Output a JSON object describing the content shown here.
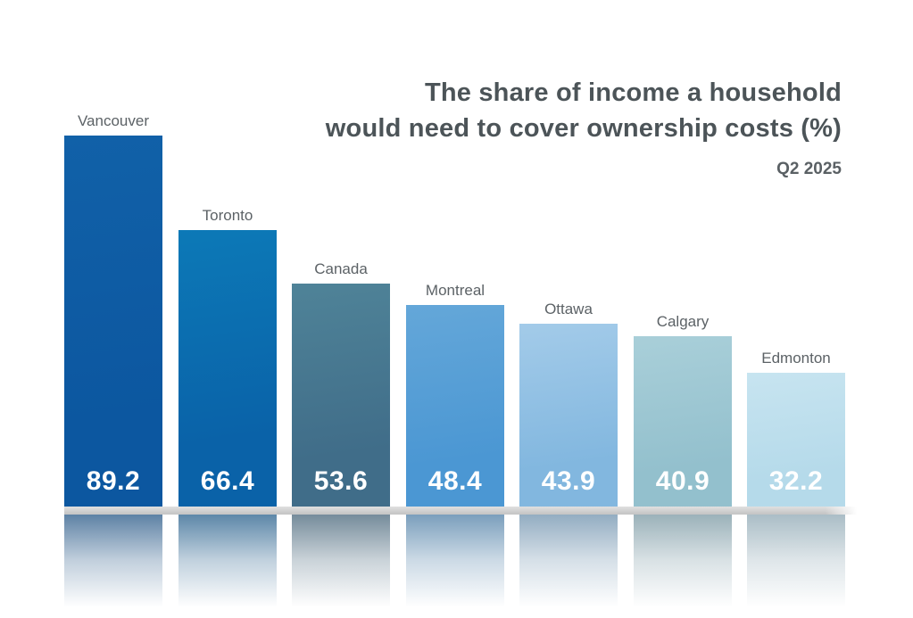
{
  "header": {
    "title_line1": "The share of income a household",
    "title_line2": "would need to cover ownership costs (%)",
    "period": "Q2 2025"
  },
  "chart_data": {
    "type": "bar",
    "orientation": "vertical",
    "title": "The share of income a household would need to cover ownership costs (%)",
    "subtitle": "Q2 2025",
    "categories": [
      "Vancouver",
      "Toronto",
      "Canada",
      "Montreal",
      "Ottawa",
      "Calgary",
      "Edmonton"
    ],
    "values": [
      89.2,
      66.4,
      53.6,
      48.4,
      43.9,
      40.9,
      32.2
    ],
    "value_labels_position": "inside-bottom",
    "category_labels_position": "above-bar",
    "axes": "none",
    "grid": false,
    "legend": "none",
    "ylim": [
      0,
      95
    ],
    "bar_colors": [
      {
        "category": "Vancouver",
        "top": "#1161a8",
        "base": "#0c57a0"
      },
      {
        "category": "Toronto",
        "top": "#0c79b7",
        "base": "#0a62a8"
      },
      {
        "category": "Canada",
        "top": "#4f8398",
        "base": "#406d89"
      },
      {
        "category": "Montreal",
        "top": "#64a7d9",
        "base": "#4b97d3"
      },
      {
        "category": "Ottawa",
        "top": "#a3cbe9",
        "base": "#82b7df"
      },
      {
        "category": "Calgary",
        "top": "#a9cfd9",
        "base": "#93c0cd"
      },
      {
        "category": "Edmonton",
        "top": "#c7e4f0",
        "base": "#b5daea"
      }
    ],
    "floor_color": "#cccccc",
    "reflection": true,
    "text_colors": {
      "title": "#4c5458",
      "period": "#5a6064",
      "category_labels": "#5c6266",
      "value_labels": "#ffffff"
    }
  }
}
